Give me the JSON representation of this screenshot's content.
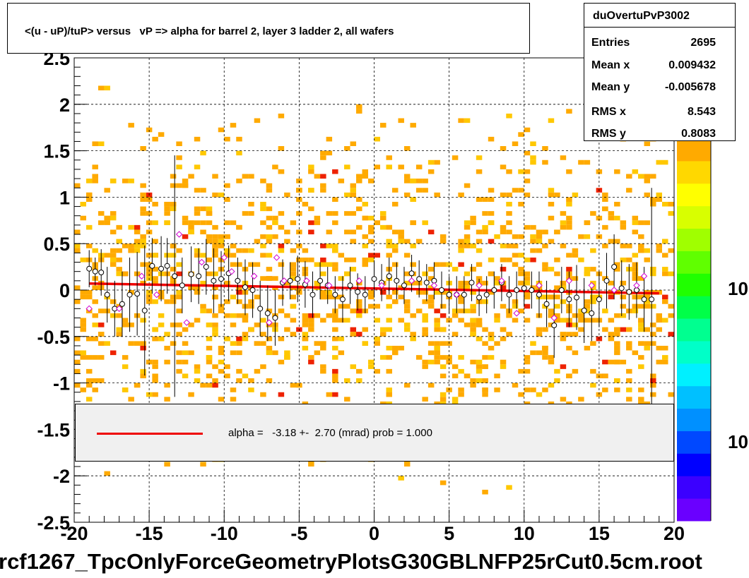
{
  "title": "<(u - uP)/tuP> versus   vP => alpha for barrel 2, layer 3 ladder 2, all wafers",
  "stats": {
    "name": "duOvertuPvP3002",
    "rows": [
      {
        "label": "Entries",
        "value": "2695"
      },
      {
        "label": "Mean x",
        "value": "0.009432"
      },
      {
        "label": "Mean y",
        "value": "-0.005678"
      },
      {
        "label": "RMS x",
        "value": "8.543"
      },
      {
        "label": "RMS y",
        "value": "0.8083"
      }
    ]
  },
  "legend": {
    "text": "alpha =   -3.18 +-  2.70 (mrad) prob = 1.000",
    "line_color": "#ee0000"
  },
  "footer": "rcf1267_TpcOnlyForceGeometryPlotsG30GBLNFP25rCut0.5cm.root",
  "colorbar": {
    "labels": [
      "10",
      "10"
    ],
    "colors": [
      "#6a00ff",
      "#3b00ff",
      "#0000ff",
      "#0048ff",
      "#0090ff",
      "#00c0ff",
      "#00f0ff",
      "#00ffc8",
      "#00ff90",
      "#00ff48",
      "#20ff00",
      "#60ff00",
      "#a0ff00",
      "#d8ff00",
      "#ffff00",
      "#ffd800",
      "#ffaa00"
    ]
  },
  "chart_data": {
    "type": "scatter",
    "xlim": [
      -20,
      20
    ],
    "ylim": [
      -2.5,
      2.5
    ],
    "xticks": [
      "-20",
      "-15",
      "-10",
      "-5",
      "0",
      "5",
      "10",
      "15",
      "20"
    ],
    "yticks": [
      "-2.5",
      "-2",
      "-1.5",
      "-1",
      "-0.5",
      "0",
      "0.5",
      "1",
      "1.5",
      "2",
      "2.5"
    ],
    "grid": true,
    "background_histogram_colors": [
      "#ffaa00",
      "#ffc800",
      "#ee2200"
    ],
    "fit_line": {
      "color": "#ee0000",
      "x": [
        -19,
        19
      ],
      "y": [
        0.07,
        -0.035
      ]
    },
    "series": [
      {
        "marker": "black-open-circle",
        "points": [
          [
            -19.0,
            0.23,
            0.2
          ],
          [
            -18.6,
            0.2,
            0.15
          ],
          [
            -18.2,
            0.19,
            0.25
          ],
          [
            -17.8,
            -0.05,
            0.3
          ],
          [
            -17.3,
            -0.2,
            0.3
          ],
          [
            -16.8,
            -0.15,
            0.35
          ],
          [
            -16.3,
            -0.05,
            0.4
          ],
          [
            -15.8,
            -0.04,
            0.45
          ],
          [
            -15.3,
            -0.22,
            0.7
          ],
          [
            -14.8,
            0.26,
            0.3
          ],
          [
            -14.2,
            0.23,
            0.35
          ],
          [
            -13.8,
            0.26,
            0.3
          ],
          [
            -13.3,
            0.15,
            1.3
          ],
          [
            -12.8,
            0.05,
            0.3
          ],
          [
            -12.2,
            0.17,
            0.3
          ],
          [
            -11.7,
            0.15,
            0.3
          ],
          [
            -11.2,
            0.25,
            0.3
          ],
          [
            -10.7,
            0.1,
            0.35
          ],
          [
            -10.2,
            0.12,
            0.3
          ],
          [
            -9.7,
            0.18,
            0.3
          ],
          [
            -9.1,
            0.1,
            0.25
          ],
          [
            -8.6,
            0.03,
            0.3
          ],
          [
            -8.1,
            0.0,
            0.3
          ],
          [
            -7.6,
            -0.2,
            0.3
          ],
          [
            -7.1,
            -0.25,
            0.3
          ],
          [
            -6.6,
            -0.3,
            0.3
          ],
          [
            -6.1,
            0.08,
            0.25
          ],
          [
            -5.6,
            0.1,
            0.2
          ],
          [
            -5.1,
            0.12,
            0.25
          ],
          [
            -4.6,
            0.06,
            0.25
          ],
          [
            -4.1,
            -0.05,
            0.25
          ],
          [
            -3.6,
            0.1,
            0.2
          ],
          [
            -3.1,
            0.05,
            0.2
          ],
          [
            -2.6,
            -0.05,
            0.2
          ],
          [
            -2.1,
            -0.1,
            0.25
          ],
          [
            -1.6,
            0.05,
            0.2
          ],
          [
            -1.1,
            -0.02,
            0.2
          ],
          [
            -0.6,
            -0.05,
            0.2
          ],
          [
            0.0,
            0.12,
            0.2
          ],
          [
            0.5,
            0.08,
            0.2
          ],
          [
            1.0,
            0.15,
            0.2
          ],
          [
            1.5,
            0.1,
            0.2
          ],
          [
            2.0,
            0.05,
            0.2
          ],
          [
            2.5,
            0.18,
            0.2
          ],
          [
            3.0,
            0.12,
            0.2
          ],
          [
            3.5,
            0.08,
            0.2
          ],
          [
            4.0,
            0.1,
            0.2
          ],
          [
            4.5,
            0.0,
            0.2
          ],
          [
            5.0,
            -0.05,
            0.2
          ],
          [
            5.5,
            -0.05,
            0.2
          ],
          [
            6.0,
            -0.05,
            0.2
          ],
          [
            6.5,
            0.08,
            0.2
          ],
          [
            7.0,
            -0.08,
            0.2
          ],
          [
            7.5,
            -0.05,
            0.2
          ],
          [
            8.0,
            0.0,
            0.2
          ],
          [
            8.5,
            0.08,
            0.2
          ],
          [
            9.0,
            -0.05,
            0.2
          ],
          [
            9.5,
            0.0,
            0.2
          ],
          [
            10.0,
            0.02,
            0.2
          ],
          [
            10.5,
            0.0,
            0.2
          ],
          [
            11.0,
            -0.05,
            0.25
          ],
          [
            11.5,
            -0.15,
            0.25
          ],
          [
            12.0,
            -0.38,
            0.35
          ],
          [
            12.5,
            0.0,
            0.25
          ],
          [
            13.0,
            -0.1,
            0.3
          ],
          [
            13.5,
            -0.08,
            0.35
          ],
          [
            14.0,
            -0.22,
            0.35
          ],
          [
            14.5,
            -0.25,
            0.3
          ],
          [
            15.0,
            -0.1,
            0.3
          ],
          [
            15.5,
            0.1,
            0.3
          ],
          [
            16.0,
            0.25,
            0.35
          ],
          [
            16.5,
            0.02,
            0.3
          ],
          [
            17.0,
            -0.02,
            0.3
          ],
          [
            17.5,
            0.0,
            0.3
          ],
          [
            18.0,
            -0.1,
            0.35
          ],
          [
            18.5,
            -0.1,
            1.2
          ]
        ]
      },
      {
        "marker": "magenta-open-diamond",
        "points": [
          [
            -19.0,
            -0.2
          ],
          [
            -17.0,
            -0.2
          ],
          [
            -15.5,
            0.15
          ],
          [
            -14.5,
            -0.05
          ],
          [
            -13.0,
            0.6
          ],
          [
            -12.5,
            -0.35
          ],
          [
            -11.5,
            0.3
          ],
          [
            -10.0,
            0.35
          ],
          [
            -9.5,
            0.2
          ],
          [
            -8.0,
            0.15
          ],
          [
            -7.0,
            -0.35
          ],
          [
            -6.5,
            0.35
          ],
          [
            -6.0,
            0.1
          ],
          [
            -4.5,
            0.1
          ],
          [
            -3.0,
            0.05
          ],
          [
            -1.0,
            0.1
          ],
          [
            0.5,
            0.05
          ],
          [
            2.5,
            0.1
          ],
          [
            4.0,
            0.05
          ],
          [
            5.5,
            -0.05
          ],
          [
            7.0,
            0.05
          ],
          [
            8.5,
            0.1
          ],
          [
            9.5,
            -0.25
          ],
          [
            11.0,
            0.05
          ],
          [
            12.0,
            -0.3
          ],
          [
            13.0,
            0.1
          ],
          [
            14.5,
            0.05
          ],
          [
            16.0,
            0.0
          ],
          [
            17.5,
            0.05
          ],
          [
            18.0,
            0.15
          ]
        ]
      }
    ]
  }
}
